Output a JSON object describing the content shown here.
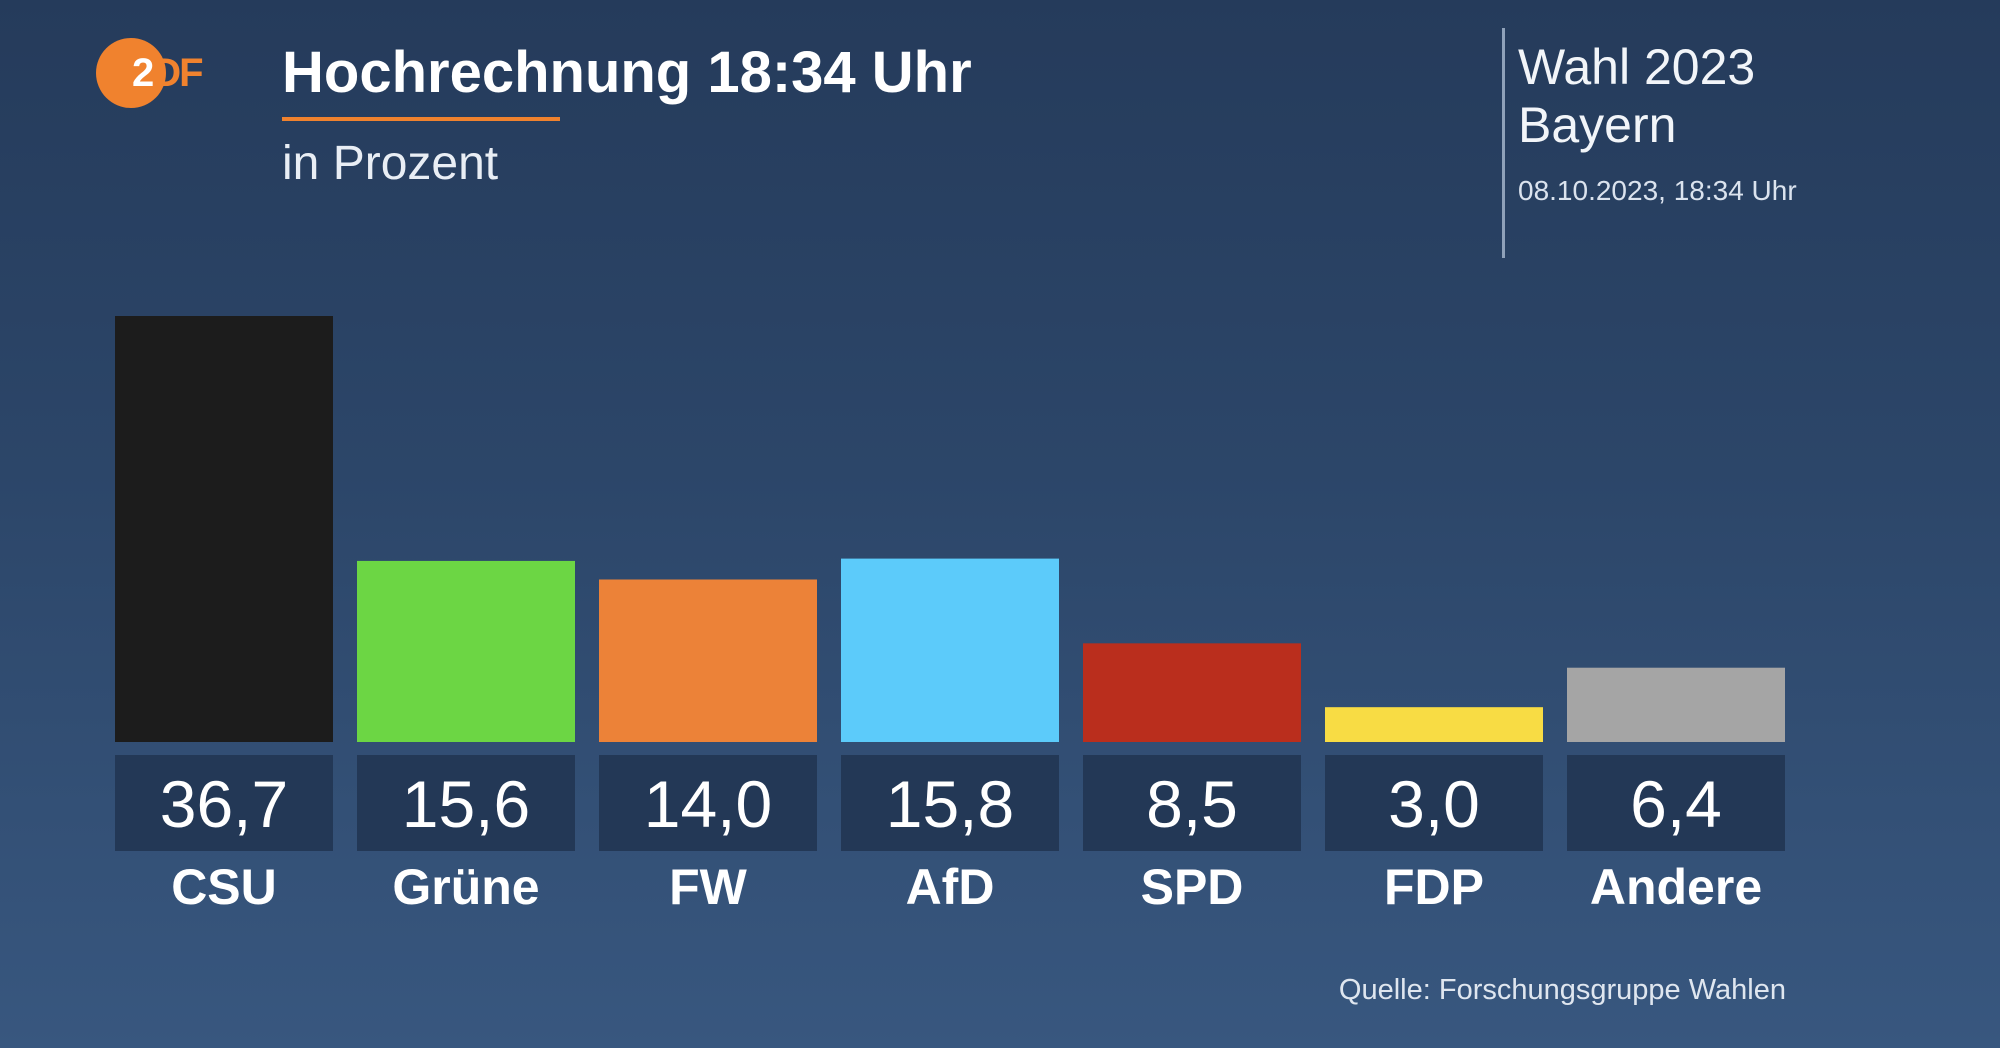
{
  "logo": {
    "text_z": "2",
    "text_df": "DF"
  },
  "header": {
    "title": "Hochrechnung 18:34 Uhr",
    "subtitle": "in Prozent"
  },
  "info": {
    "line1": "Wahl 2023",
    "line2": "Bayern",
    "date": "08.10.2023, 18:34 Uhr"
  },
  "source": "Quelle: Forschungsgruppe Wahlen",
  "colors": {
    "accent": "#f0822e",
    "value_box": "#233856"
  },
  "chart_data": {
    "type": "bar",
    "categories": [
      "CSU",
      "Grüne",
      "FW",
      "AfD",
      "SPD",
      "FDP",
      "Andere"
    ],
    "values": [
      36.7,
      15.6,
      14.0,
      15.8,
      8.5,
      3.0,
      6.4
    ],
    "value_labels": [
      "36,7",
      "15,6",
      "14,0",
      "15,8",
      "8,5",
      "3,0",
      "6,4"
    ],
    "colors": [
      "#1c1c1c",
      "#6cd644",
      "#ec8238",
      "#5ccbfa",
      "#ba2e1d",
      "#f8dc44",
      "#a5a5a5"
    ],
    "ylim": [
      0,
      36.7
    ],
    "grid": false,
    "legend": "none"
  }
}
